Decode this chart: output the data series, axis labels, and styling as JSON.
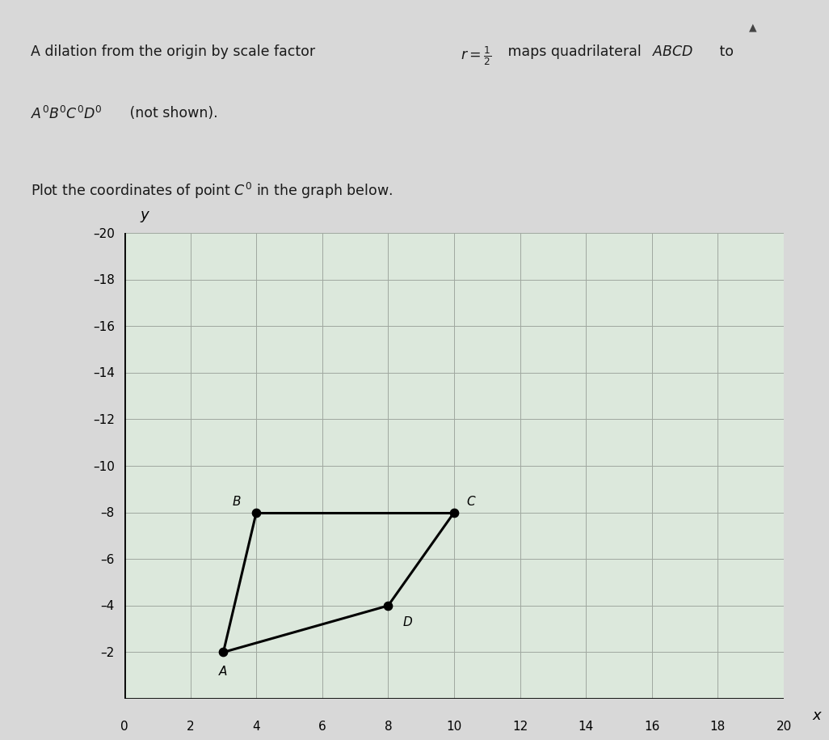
{
  "points": {
    "A": [
      3,
      2
    ],
    "B": [
      4,
      8
    ],
    "C": [
      10,
      8
    ],
    "D": [
      8,
      4
    ]
  },
  "edges": [
    [
      "A",
      "B"
    ],
    [
      "B",
      "C"
    ],
    [
      "C",
      "D"
    ],
    [
      "D",
      "A"
    ]
  ],
  "xlim": [
    0,
    20
  ],
  "ylim": [
    0,
    20
  ],
  "xticks": [
    0,
    2,
    4,
    6,
    8,
    10,
    12,
    14,
    16,
    18,
    20
  ],
  "yticks": [
    2,
    4,
    6,
    8,
    10,
    12,
    14,
    16,
    18,
    20
  ],
  "grid_color": "#a0a8a0",
  "graph_bg_color": "#dce8dc",
  "graph_bg_upper_color": "#c8dcc8",
  "page_bg_color": "#d8d8d8",
  "text_box_bg": "#ffffff",
  "quadrilateral_color": "#000000",
  "point_color": "#000000",
  "text_color": "#000000",
  "label_fontsize": 11,
  "tick_fontsize": 11,
  "point_size": 55,
  "line_width": 2.2
}
